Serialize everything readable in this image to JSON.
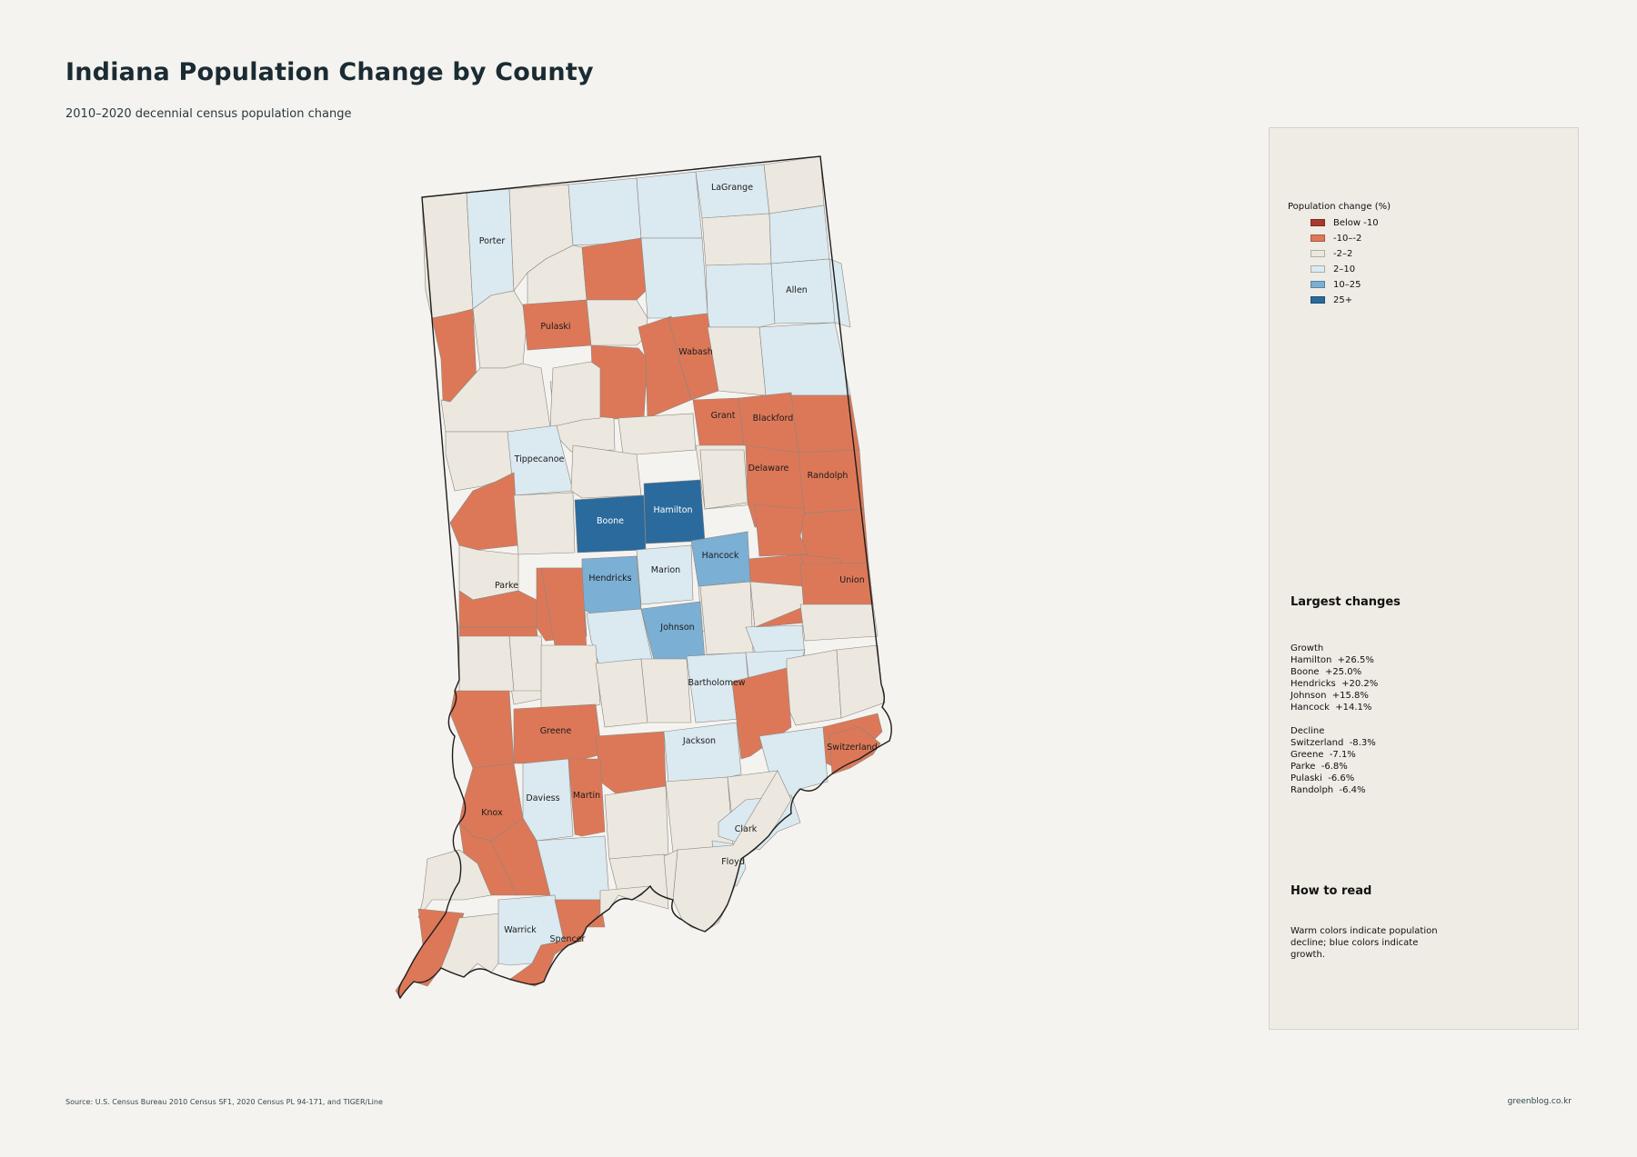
{
  "title": "Indiana Population Change by County",
  "subtitle": "2010–2020 decennial census population change",
  "colors": {
    "below_-10": "#a8392c",
    "-10--2": "#dc7858",
    "-2-2": "#ece8df",
    "2-10": "#dbe9f0",
    "10-25": "#7bafd4",
    "25+": "#2a6a9d"
  },
  "legend": {
    "title": "Population change (%)",
    "items": [
      {
        "label": "Below -10",
        "key": "below_-10"
      },
      {
        "label": "-10–-2",
        "key": "-10--2"
      },
      {
        "label": "-2–2",
        "key": "-2-2"
      },
      {
        "label": "2–10",
        "key": "2-10"
      },
      {
        "label": "10–25",
        "key": "10-25"
      },
      {
        "label": "25+",
        "key": "25+"
      }
    ]
  },
  "largest_changes": {
    "title": "Largest changes",
    "growth_heading": "Growth",
    "growth": [
      {
        "county": "Hamilton",
        "value": "+26.5%"
      },
      {
        "county": "Boone",
        "value": "+25.0%"
      },
      {
        "county": "Hendricks",
        "value": "+20.2%"
      },
      {
        "county": "Johnson",
        "value": "+15.8%"
      },
      {
        "county": "Hancock",
        "value": "+14.1%"
      }
    ],
    "decline_heading": "Decline",
    "decline": [
      {
        "county": "Switzerland",
        "value": "-8.3%"
      },
      {
        "county": "Greene",
        "value": "-7.1%"
      },
      {
        "county": "Parke",
        "value": "-6.8%"
      },
      {
        "county": "Pulaski",
        "value": "-6.6%"
      },
      {
        "county": "Randolph",
        "value": "-6.4%"
      }
    ]
  },
  "how_to_read": {
    "title": "How to read",
    "text": "Warm colors indicate population decline; blue colors indicate growth."
  },
  "county_labels": [
    "Porter",
    "LaGrange",
    "Allen",
    "Pulaski",
    "Wabash",
    "Grant",
    "Blackford",
    "Tippecanoe",
    "Delaware",
    "Randolph",
    "Boone",
    "Hamilton",
    "Hancock",
    "Hendricks",
    "Marion",
    "Union",
    "Parke",
    "Johnson",
    "Bartholomew",
    "Greene",
    "Switzerland",
    "Jackson",
    "Daviess",
    "Martin",
    "Knox",
    "Clark",
    "Floyd",
    "Warrick",
    "Spencer"
  ],
  "source": "Source: U.S. Census Bureau 2010 Census SF1, 2020 Census PL 94-171, and TIGER/Line",
  "credit": "greenblog.co.kr"
}
